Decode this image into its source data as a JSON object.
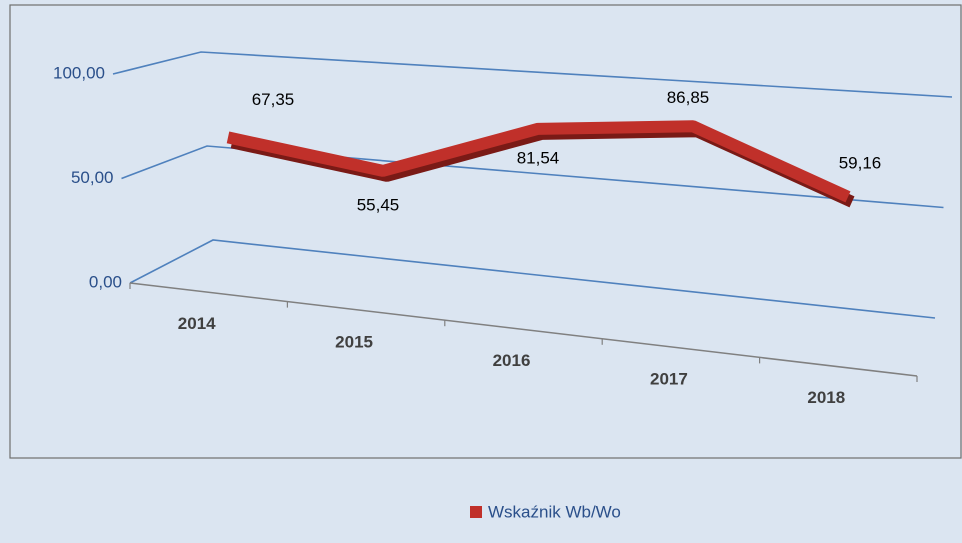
{
  "chart_data": {
    "type": "line",
    "categories": [
      "2014",
      "2015",
      "2016",
      "2017",
      "2018"
    ],
    "series": [
      {
        "name": "Wskaźnik Wb/Wo",
        "color": "#c0302a",
        "values": [
          67.35,
          55.45,
          81.54,
          86.85,
          59.16
        ],
        "value_labels": [
          "67,35",
          "55,45",
          "81,54",
          "86,85",
          "59,16"
        ]
      }
    ],
    "ylim": [
      0,
      100
    ],
    "yticks": [
      {
        "value": 0,
        "label": "0,00"
      },
      {
        "value": 50,
        "label": "50,00"
      },
      {
        "value": 100,
        "label": "100,00"
      }
    ],
    "grid": true,
    "legend": "bottom"
  }
}
